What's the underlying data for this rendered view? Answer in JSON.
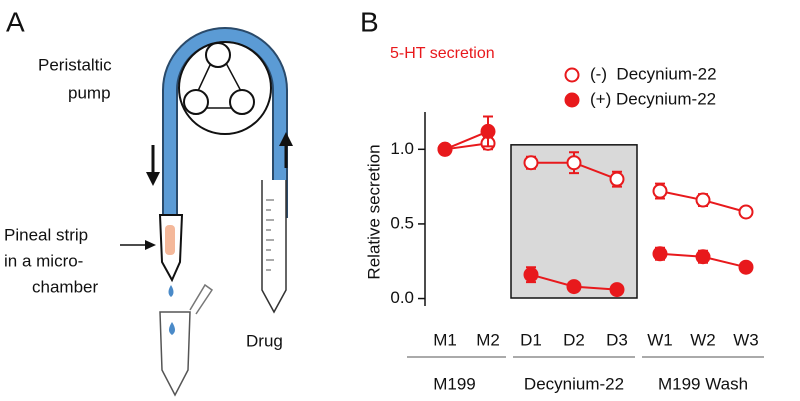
{
  "panel_a": {
    "label": "A",
    "pump_label": [
      "Peristaltic",
      "pump"
    ],
    "chamber_label": [
      "Pineal strip",
      "in a micro-",
      "chamber"
    ],
    "drug_label": "Drug"
  },
  "chart_data": {
    "type": "line",
    "panel_label": "B",
    "title": "5-HT secretion",
    "y_label": "Relative secretion",
    "categories": [
      "M1",
      "M2",
      "D1",
      "D2",
      "D3",
      "W1",
      "W2",
      "W3"
    ],
    "groups": [
      "M199",
      "Decynium-22",
      "M199 Wash"
    ],
    "series": [
      {
        "name": "(-)  Decynium-22",
        "color": "#e8191c",
        "marker": "open",
        "values": [
          1.0,
          1.04,
          0.91,
          0.91,
          0.8,
          0.72,
          0.66,
          0.58
        ],
        "errors": [
          0,
          0.04,
          0.04,
          0.07,
          0.05,
          0.05,
          0.04,
          0.03
        ]
      },
      {
        "name": "(+) Decynium-22",
        "color": "#e8191c",
        "marker": "filled",
        "values": [
          1.0,
          1.12,
          0.16,
          0.08,
          0.06,
          0.3,
          0.28,
          0.21
        ],
        "errors": [
          0,
          0.1,
          0.05,
          0.02,
          0.01,
          0.04,
          0.04,
          0.02
        ]
      }
    ],
    "ylim": [
      -0.05,
      1.25
    ],
    "yticks": [
      {
        "value": 0,
        "label": "0.0"
      },
      {
        "value": 0.5,
        "label": "0.5"
      },
      {
        "value": 1,
        "label": "1.0"
      }
    ]
  }
}
